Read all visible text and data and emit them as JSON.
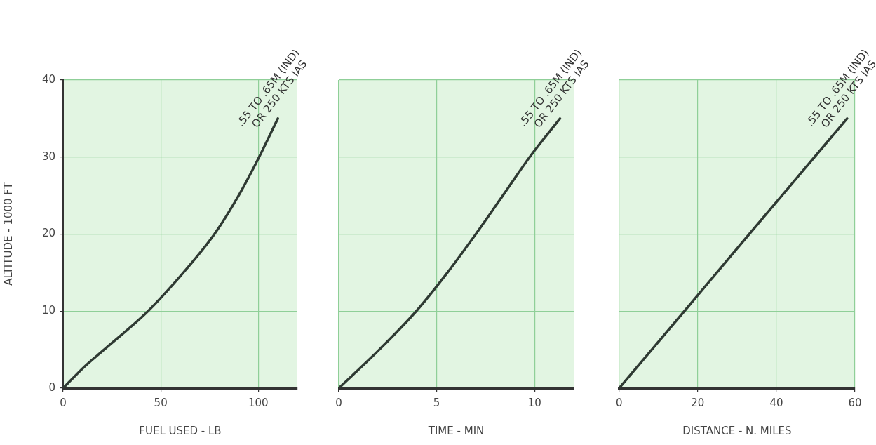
{
  "chart_data": [
    {
      "type": "line",
      "xlabel": "FUEL USED - LB",
      "ylabel": "ALTITUDE - 1000 FT",
      "x": [
        0,
        11,
        21,
        43.5,
        61.6,
        77.5,
        89.9,
        100.4,
        110
      ],
      "series": [
        {
          "color": "#2f3a33",
          "values": [
            0,
            2.8,
            5,
            10,
            15,
            20,
            25,
            30,
            35
          ]
        }
      ],
      "xlim": [
        0,
        120
      ],
      "xticks": [
        0,
        50,
        100
      ],
      "ylim": [
        0,
        40
      ],
      "yticks": [
        0,
        10,
        20,
        30,
        40
      ],
      "grid": true,
      "annotations": [
        {
          "text": ".55 TO .65M (IND)\nOR 250 KTS IAS",
          "x": 110,
          "y": 35
        }
      ]
    },
    {
      "type": "line",
      "xlabel": "TIME - MIN",
      "x": [
        0,
        2.07,
        3.96,
        5.55,
        7,
        8.38,
        9.75,
        11.3
      ],
      "series": [
        {
          "color": "#2f3a33",
          "values": [
            0,
            5,
            10,
            15,
            20,
            25,
            30,
            35
          ]
        }
      ],
      "xlim": [
        0,
        12
      ],
      "xticks": [
        0,
        5,
        10
      ],
      "ylim": [
        0,
        40
      ],
      "yticks": [
        0,
        10,
        20,
        30,
        40
      ],
      "grid": true,
      "tick_labels": "x",
      "annotations": [
        {
          "text": ".55 TO .65M (IND)\nOR 250 KTS IAS",
          "x": 11.3,
          "y": 35
        }
      ]
    },
    {
      "type": "line",
      "xlabel": "DISTANCE - N. MILES",
      "x": [
        0,
        16.6,
        33.1,
        49.7,
        58
      ],
      "series": [
        {
          "color": "#2f3a33",
          "values": [
            0,
            10,
            20,
            30,
            35
          ]
        }
      ],
      "xlim": [
        0,
        60
      ],
      "xticks": [
        0,
        20,
        40,
        60
      ],
      "ylim": [
        0,
        40
      ],
      "yticks": [
        0,
        10,
        20,
        30,
        40
      ],
      "grid": true,
      "tick_labels": "x",
      "annotations": [
        {
          "text": ".55 TO .65M (IND)\nOR 250 KTS IAS",
          "x": 58,
          "y": 35
        }
      ]
    }
  ]
}
